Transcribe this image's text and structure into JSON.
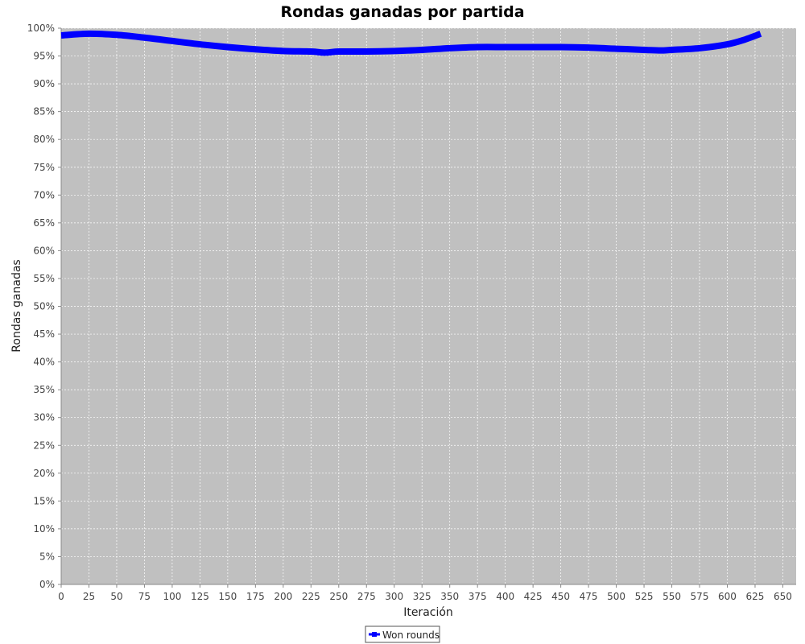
{
  "chart_data": {
    "type": "line",
    "title": "Rondas ganadas por partida",
    "xlabel": "Iteración",
    "ylabel": "Rondas ganadas",
    "xlim": [
      0,
      662
    ],
    "ylim": [
      0,
      100
    ],
    "x_ticks": [
      0,
      25,
      50,
      75,
      100,
      125,
      150,
      175,
      200,
      225,
      250,
      275,
      300,
      325,
      350,
      375,
      400,
      425,
      450,
      475,
      500,
      525,
      550,
      575,
      600,
      625,
      650
    ],
    "y_ticks": [
      0,
      5,
      10,
      15,
      20,
      25,
      30,
      35,
      40,
      45,
      50,
      55,
      60,
      65,
      70,
      75,
      80,
      85,
      90,
      95,
      100
    ],
    "y_tick_suffix": "%",
    "grid": true,
    "background": "#c0c0c0",
    "legend_position": "bottom-center",
    "series": [
      {
        "name": "Won rounds",
        "color": "#0000ff",
        "x": [
          0,
          25,
          50,
          75,
          100,
          125,
          150,
          175,
          200,
          225,
          238,
          250,
          275,
          300,
          325,
          350,
          375,
          400,
          425,
          450,
          475,
          500,
          525,
          540,
          550,
          575,
          600,
          615,
          630
        ],
        "y": [
          98.7,
          99.0,
          98.8,
          98.3,
          97.7,
          97.1,
          96.6,
          96.2,
          95.9,
          95.8,
          95.6,
          95.8,
          95.8,
          95.9,
          96.1,
          96.4,
          96.6,
          96.6,
          96.6,
          96.6,
          96.5,
          96.3,
          96.1,
          96.0,
          96.1,
          96.4,
          97.1,
          97.9,
          99.0
        ]
      }
    ]
  }
}
